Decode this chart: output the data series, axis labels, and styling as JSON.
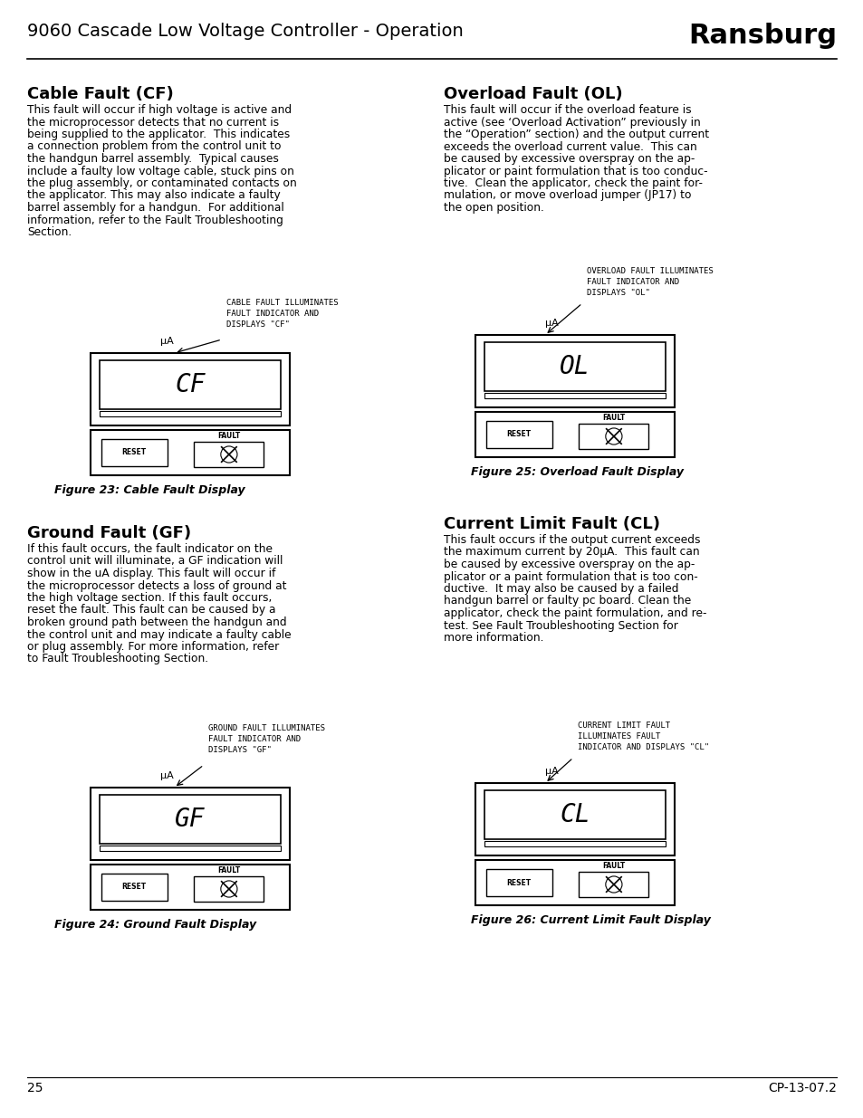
{
  "page_title": "9060 Cascade Low Voltage Controller - Operation",
  "brand": "Ransburg",
  "page_number": "25",
  "doc_ref": "CP-13-07.2",
  "background_color": "#ffffff",
  "text_color": "#000000",
  "section1_title": "Cable Fault (CF)",
  "section1_body": "This fault will occur if high voltage is active and\nthe microprocessor detects that no current is\nbeing supplied to the applicator.  This indicates\na connection problem from the control unit to\nthe handgun barrel assembly.  Typical causes\ninclude a faulty low voltage cable, stuck pins on\nthe plug assembly, or contaminated contacts on\nthe applicator. This may also indicate a faulty\nbarrel assembly for a handgun.  For additional\ninformation, refer to the Fault Troubleshooting\nSection.",
  "section1_fig_label": "CABLE FAULT ILLUMINATES\nFAULT INDICATOR AND\nDISPLAYS \"CF\"",
  "section1_display": "CF",
  "section1_fig_caption": "Figure 23: Cable Fault Display",
  "section2_title": "Ground Fault (GF)",
  "section2_body": "If this fault occurs, the fault indicator on the\ncontrol unit will illuminate, a GF indication will\nshow in the uA display. This fault will occur if\nthe microprocessor detects a loss of ground at\nthe high voltage section. If this fault occurs,\nreset the fault. This fault can be caused by a\nbroken ground path between the handgun and\nthe control unit and may indicate a faulty cable\nor plug assembly. For more information, refer\nto Fault Troubleshooting Section.",
  "section2_fig_label": "GROUND FAULT ILLUMINATES\nFAULT INDICATOR AND\nDISPLAYS \"GF\"",
  "section2_display": "GF",
  "section2_fig_caption": "Figure 24: Ground Fault Display",
  "section3_title": "Overload Fault (OL)",
  "section3_body": "This fault will occur if the overload feature is\nactive (see ‘Overload Activation” previously in\nthe “Operation” section) and the output current\nexceeds the overload current value.  This can\nbe caused by excessive overspray on the ap-\nplicator or paint formulation that is too conduc-\ntive.  Clean the applicator, check the paint for-\nmulation, or move overload jumper (JP17) to\nthe open position.",
  "section3_fig_label": "OVERLOAD FAULT ILLUMINATES\nFAULT INDICATOR AND\nDISPLAYS \"OL\"",
  "section3_display": "OL",
  "section3_fig_caption": "Figure 25: Overload Fault Display",
  "section4_title": "Current Limit Fault (CL)",
  "section4_body": "This fault occurs if the output current exceeds\nthe maximum current by 20μA.  This fault can\nbe caused by excessive overspray on the ap-\nplicator or a paint formulation that is too con-\nductive.  It may also be caused by a failed\nhandgun barrel or faulty pc board. Clean the\napplicator, check the paint formulation, and re-\ntest. See Fault Troubleshooting Section for\nmore information.",
  "section4_fig_label": "CURRENT LIMIT FAULT\nILLUMINATES FAULT\nINDICATOR AND DISPLAYS \"CL\"",
  "section4_display": "CL",
  "section4_fig_caption": "Figure 26: Current Limit Fault Display"
}
